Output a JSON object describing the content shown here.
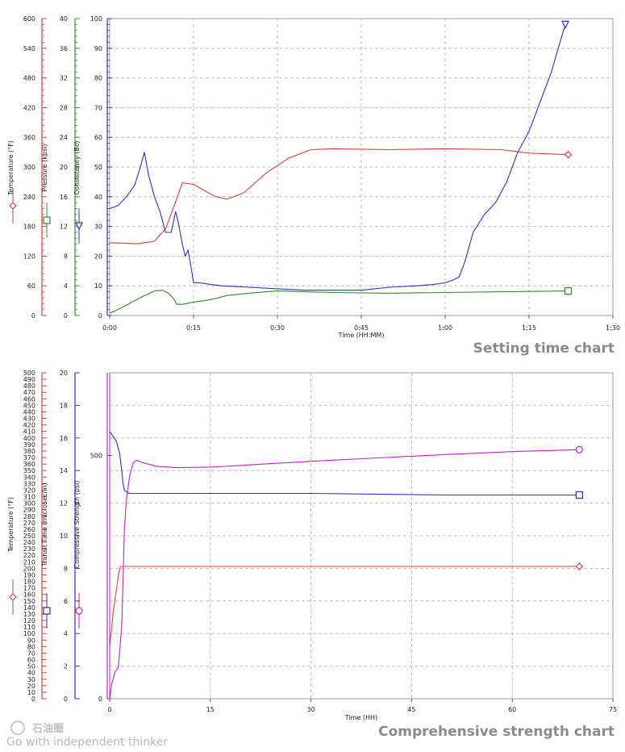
{
  "captions": {
    "chart1": "Setting time chart",
    "chart2": "Comprehensive strength chart"
  },
  "watermark": {
    "brand": "石油圈",
    "tagline": "Go with independent thinker"
  },
  "chart_data": [
    {
      "type": "line",
      "caption": "Setting time chart",
      "xlabel": "Time (HH:MM)",
      "x_range": [
        0,
        90
      ],
      "x_ticks": [
        0,
        15,
        30,
        45,
        60,
        75,
        90
      ],
      "x_tick_labels": [
        "0:00",
        "0:15",
        "0:30",
        "0:45",
        "1:00",
        "1:15",
        "1:30"
      ],
      "grid": true,
      "axes": [
        {
          "id": "temp",
          "label": "Temperature (°F)",
          "color": "#d04040",
          "range": [
            0,
            600
          ],
          "ticks": [
            0,
            60,
            120,
            180,
            240,
            300,
            360,
            420,
            480,
            540,
            600
          ],
          "marker": "diamond"
        },
        {
          "id": "pres",
          "label": "Pressure (kpsi)",
          "color": "#2e8b2e",
          "range": [
            0,
            40
          ],
          "ticks": [
            0,
            4,
            8,
            12,
            16,
            20,
            24,
            28,
            32,
            36,
            40
          ],
          "marker": "square"
        },
        {
          "id": "cons",
          "label": "Consistency (Bc)",
          "color": "#3030c0",
          "range": [
            0,
            100
          ],
          "ticks": [
            0,
            10,
            20,
            30,
            40,
            50,
            60,
            70,
            80,
            90,
            100
          ],
          "marker": "triangle-down"
        }
      ],
      "series": [
        {
          "axis": "temp",
          "color": "#d04040",
          "marker": "diamond",
          "x": [
            0,
            5,
            8,
            10,
            11.5,
            13,
            15,
            17,
            19,
            21,
            24,
            28,
            32,
            36,
            40,
            50,
            60,
            70,
            75,
            82
          ],
          "y": [
            147,
            145,
            150,
            175,
            220,
            268,
            265,
            252,
            240,
            235,
            248,
            288,
            318,
            335,
            337,
            335,
            337,
            335,
            328,
            325
          ]
        },
        {
          "axis": "pres",
          "color": "#2e8b2e",
          "marker": "square",
          "x": [
            0,
            2,
            4,
            6,
            8,
            9.5,
            10.5,
            11.5,
            12,
            13,
            15,
            17,
            19,
            21,
            25,
            28,
            30,
            35,
            40,
            50,
            60,
            70,
            82
          ],
          "y": [
            0.3,
            1,
            1.8,
            2.6,
            3.3,
            3.4,
            3,
            2.2,
            1.5,
            1.5,
            1.8,
            2,
            2.3,
            2.7,
            3,
            3.2,
            3.3,
            3.2,
            3.1,
            3,
            3.1,
            3.2,
            3.3
          ]
        },
        {
          "axis": "cons",
          "color": "#3030c0",
          "marker": "triangle-down",
          "x": [
            0,
            1.5,
            3,
            4.5,
            5.5,
            6.2,
            7,
            8,
            9,
            10,
            11,
            11.8,
            12.3,
            13,
            13.5,
            14,
            14.5,
            15,
            16,
            18,
            20,
            25,
            30,
            35,
            40,
            45,
            50,
            55,
            58,
            60,
            61.5,
            62.5,
            63.5,
            65,
            67,
            69,
            71,
            72,
            73,
            75,
            77,
            79,
            81,
            81.5
          ],
          "y": [
            36,
            37,
            40,
            44,
            50,
            55,
            47,
            40,
            35,
            28,
            28,
            35,
            31,
            24,
            20,
            22,
            17,
            11,
            11,
            10.5,
            10,
            9.5,
            9,
            8.5,
            8.5,
            8.5,
            9.5,
            10,
            10.5,
            11,
            12,
            13,
            18,
            28,
            34,
            38,
            45,
            50,
            55,
            62,
            72,
            82,
            95,
            98
          ]
        }
      ]
    },
    {
      "type": "line",
      "caption": "Comprehensive strength chart",
      "xlabel": "Time (HH)",
      "x_range": [
        0,
        75
      ],
      "x_ticks": [
        0,
        15,
        30,
        45,
        60,
        75
      ],
      "x_tick_labels": [
        "0",
        "15",
        "30",
        "45",
        "60",
        "75"
      ],
      "grid": true,
      "axes": [
        {
          "id": "temp",
          "label": "Temperature (°F)",
          "color": "#d04040",
          "range": [
            0,
            500
          ],
          "ticks": [
            0,
            10,
            20,
            30,
            40,
            50,
            60,
            70,
            80,
            90,
            100,
            110,
            120,
            130,
            140,
            150,
            160,
            170,
            180,
            190,
            200,
            210,
            220,
            230,
            240,
            250,
            260,
            270,
            280,
            290,
            300,
            310,
            320,
            330,
            340,
            350,
            360,
            370,
            380,
            390,
            400,
            410,
            420,
            430,
            440,
            450,
            460,
            470,
            480,
            490,
            500
          ],
          "marker": "diamond"
        },
        {
          "id": "trans",
          "label": "Transit Time (microsec/in)",
          "color": "#3030c0",
          "range": [
            0,
            20
          ],
          "ticks": [
            0,
            2,
            4,
            6,
            8,
            10,
            12,
            14,
            16,
            18,
            20
          ],
          "marker": "square"
        },
        {
          "id": "comp",
          "label": "Compressive Strength (psi)",
          "color": "#c020c0",
          "range": [
            0,
            670
          ],
          "ticks": [
            0,
            500
          ],
          "marker": "circle"
        }
      ],
      "series": [
        {
          "axis": "temp",
          "color": "#e04040",
          "marker": "diamond",
          "x": [
            0,
            0.3,
            0.6,
            0.9,
            1.1,
            1.3,
            1.6,
            2,
            10,
            30,
            50,
            70
          ],
          "y": [
            80,
            110,
            140,
            160,
            175,
            190,
            203,
            203,
            203,
            203,
            203,
            203
          ]
        },
        {
          "axis": "trans",
          "color": "#3030c0",
          "marker": "square",
          "x": [
            0,
            0.5,
            1,
            1.5,
            1.8,
            2,
            2.2,
            2.5,
            3,
            4,
            10,
            30,
            50,
            70
          ],
          "y": [
            16.4,
            16.1,
            15.8,
            15,
            14,
            13.2,
            12.8,
            12.7,
            12.6,
            12.6,
            12.6,
            12.6,
            12.5,
            12.5
          ]
        },
        {
          "axis": "comp",
          "color": "#c020c0",
          "marker": "circle",
          "x": [
            0,
            0.3,
            0.8,
            1.3,
            1.8,
            2.2,
            2.5,
            3,
            3.5,
            4,
            5,
            7,
            10,
            15,
            20,
            30,
            40,
            50,
            60,
            70
          ],
          "y": [
            0,
            30,
            55,
            65,
            150,
            350,
            410,
            460,
            485,
            490,
            485,
            478,
            475,
            476,
            480,
            488,
            495,
            502,
            508,
            512
          ]
        }
      ]
    }
  ]
}
